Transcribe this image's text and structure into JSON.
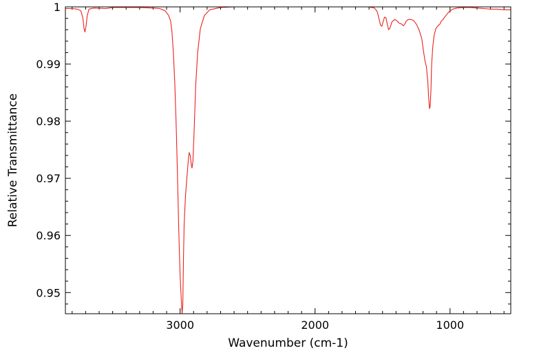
{
  "chart_data": {
    "type": "line",
    "title": "",
    "xlabel": "Wavenumber (cm-1)",
    "ylabel": "Relative Transmittance",
    "xlim": [
      3850,
      550
    ],
    "ylim": [
      0.9463,
      1.0
    ],
    "x_reversed": true,
    "grid": false,
    "legend": "none",
    "colors": {
      "series": "#e8211b",
      "axes": "#000000",
      "background": "#ffffff"
    },
    "x_ticks": [
      {
        "value": 3000,
        "label": "3000"
      },
      {
        "value": 2000,
        "label": "2000"
      },
      {
        "value": 1000,
        "label": "1000"
      }
    ],
    "y_ticks": [
      {
        "value": 1.0,
        "label": "1"
      },
      {
        "value": 0.99,
        "label": "0.99"
      },
      {
        "value": 0.98,
        "label": "0.98"
      },
      {
        "value": 0.97,
        "label": "0.97"
      },
      {
        "value": 0.96,
        "label": "0.96"
      },
      {
        "value": 0.95,
        "label": "0.95"
      }
    ],
    "x_minor_step": 100,
    "y_minor_step": 0.002,
    "series": [
      {
        "points": [
          [
            3850,
            0.9997
          ],
          [
            3800,
            0.9997
          ],
          [
            3760,
            0.9996
          ],
          [
            3735,
            0.9993
          ],
          [
            3720,
            0.998
          ],
          [
            3712,
            0.9962
          ],
          [
            3705,
            0.9956
          ],
          [
            3698,
            0.9965
          ],
          [
            3688,
            0.9985
          ],
          [
            3675,
            0.9996
          ],
          [
            3640,
            0.9998
          ],
          [
            3550,
            0.9997
          ],
          [
            3500,
            0.9999
          ],
          [
            3400,
            0.9999
          ],
          [
            3300,
            0.9999
          ],
          [
            3200,
            0.9998
          ],
          [
            3150,
            0.9997
          ],
          [
            3110,
            0.9993
          ],
          [
            3085,
            0.9985
          ],
          [
            3070,
            0.9975
          ],
          [
            3060,
            0.9955
          ],
          [
            3050,
            0.992
          ],
          [
            3040,
            0.987
          ],
          [
            3030,
            0.98
          ],
          [
            3020,
            0.971
          ],
          [
            3010,
            0.961
          ],
          [
            3000,
            0.953
          ],
          [
            2992,
            0.949
          ],
          [
            2985,
            0.9463
          ],
          [
            2980,
            0.948
          ],
          [
            2975,
            0.956
          ],
          [
            2970,
            0.962
          ],
          [
            2960,
            0.967
          ],
          [
            2950,
            0.97
          ],
          [
            2940,
            0.973
          ],
          [
            2933,
            0.9745
          ],
          [
            2925,
            0.974
          ],
          [
            2918,
            0.9725
          ],
          [
            2912,
            0.9718
          ],
          [
            2905,
            0.973
          ],
          [
            2895,
            0.979
          ],
          [
            2885,
            0.986
          ],
          [
            2870,
            0.992
          ],
          [
            2850,
            0.9962
          ],
          [
            2820,
            0.9985
          ],
          [
            2780,
            0.9995
          ],
          [
            2700,
            0.9999
          ],
          [
            2600,
            1.0
          ],
          [
            2400,
            1.0
          ],
          [
            2200,
            1.0
          ],
          [
            2000,
            1.0
          ],
          [
            1800,
            1.0
          ],
          [
            1600,
            1.0
          ],
          [
            1560,
            0.9998
          ],
          [
            1540,
            0.9992
          ],
          [
            1525,
            0.9978
          ],
          [
            1515,
            0.9968
          ],
          [
            1505,
            0.9966
          ],
          [
            1495,
            0.9975
          ],
          [
            1485,
            0.9982
          ],
          [
            1475,
            0.9981
          ],
          [
            1465,
            0.997
          ],
          [
            1455,
            0.996
          ],
          [
            1445,
            0.9963
          ],
          [
            1430,
            0.9974
          ],
          [
            1410,
            0.9978
          ],
          [
            1395,
            0.9976
          ],
          [
            1380,
            0.9972
          ],
          [
            1360,
            0.997
          ],
          [
            1345,
            0.9967
          ],
          [
            1335,
            0.997
          ],
          [
            1325,
            0.9975
          ],
          [
            1310,
            0.9978
          ],
          [
            1290,
            0.9978
          ],
          [
            1270,
            0.9976
          ],
          [
            1250,
            0.997
          ],
          [
            1230,
            0.996
          ],
          [
            1210,
            0.9945
          ],
          [
            1195,
            0.992
          ],
          [
            1185,
            0.9905
          ],
          [
            1175,
            0.9895
          ],
          [
            1165,
            0.987
          ],
          [
            1158,
            0.984
          ],
          [
            1152,
            0.9822
          ],
          [
            1147,
            0.9826
          ],
          [
            1142,
            0.985
          ],
          [
            1136,
            0.99
          ],
          [
            1128,
            0.993
          ],
          [
            1118,
            0.995
          ],
          [
            1105,
            0.9962
          ],
          [
            1090,
            0.9967
          ],
          [
            1075,
            0.997
          ],
          [
            1065,
            0.9975
          ],
          [
            1055,
            0.9977
          ],
          [
            1040,
            0.9982
          ],
          [
            1020,
            0.9988
          ],
          [
            1000,
            0.9993
          ],
          [
            980,
            0.9996
          ],
          [
            950,
            0.9998
          ],
          [
            900,
            0.9999
          ],
          [
            850,
            0.9999
          ],
          [
            800,
            0.9998
          ],
          [
            750,
            0.9997
          ],
          [
            700,
            0.9996
          ],
          [
            650,
            0.9996
          ],
          [
            600,
            0.9995
          ],
          [
            550,
            0.9995
          ]
        ]
      }
    ]
  }
}
